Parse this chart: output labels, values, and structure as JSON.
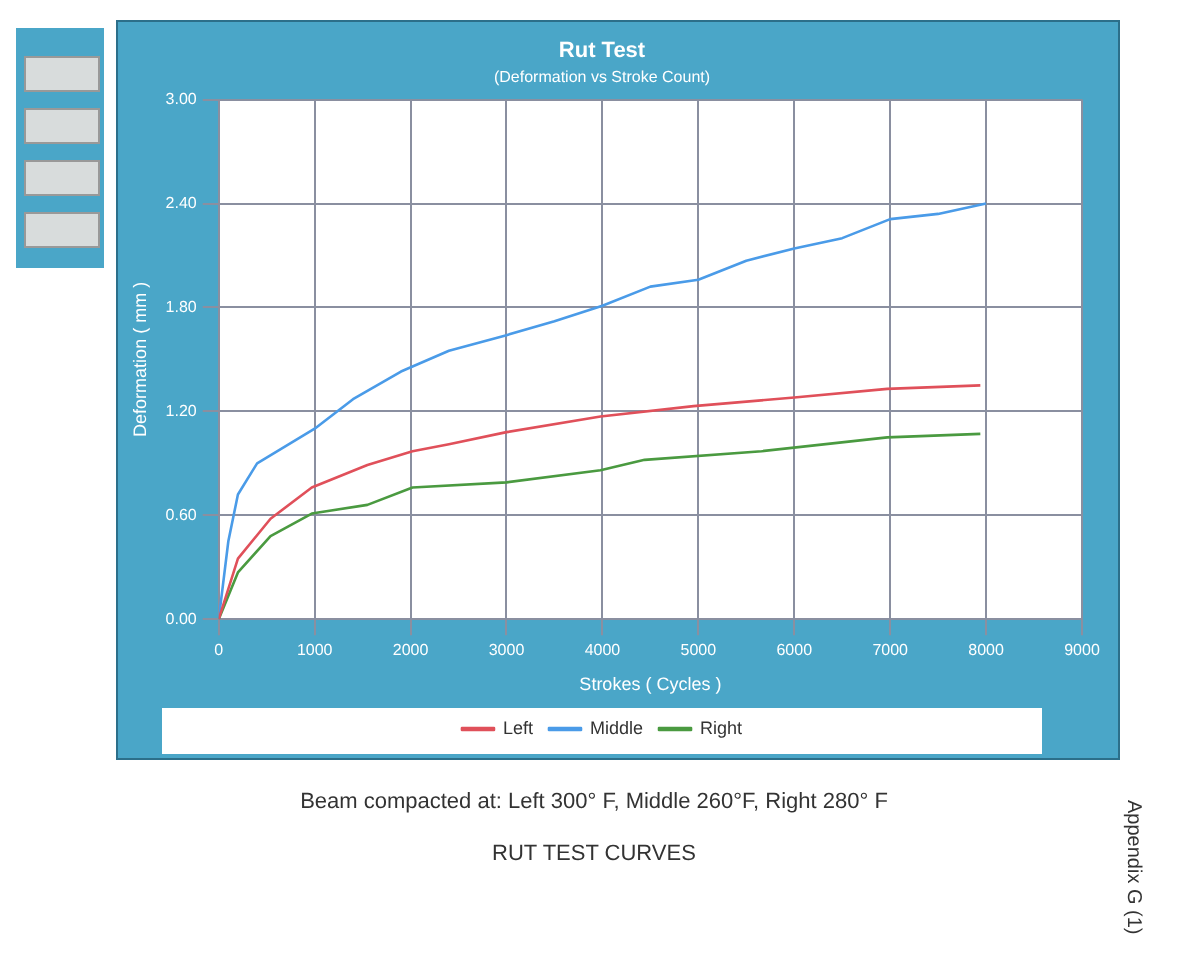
{
  "chart_data": {
    "type": "line",
    "title": "Rut Test",
    "subtitle": "(Deformation vs Stroke Count)",
    "xlabel": "Strokes ( Cycles )",
    "ylabel": "Deformation ( mm )",
    "xlim": [
      0,
      9000
    ],
    "xticks": [
      0,
      1000,
      2000,
      3000,
      4000,
      5000,
      6000,
      7000,
      8000,
      9000
    ],
    "ylim": [
      0,
      3.0
    ],
    "yticks": [
      {
        "value": 0,
        "label": "0.00"
      },
      {
        "value": 0.6,
        "label": "0.60"
      },
      {
        "value": 1.2,
        "label": "1.20"
      },
      {
        "value": 1.8,
        "label": "1.80"
      },
      {
        "value": 2.4,
        "label": "2.40"
      },
      {
        "value": 3.0,
        "label": "3.00"
      }
    ],
    "grid": true,
    "legend": "bottom",
    "marker": "none",
    "line_style": "solid",
    "series": [
      {
        "name": "Left",
        "color": "#e0505a",
        "x": [
          0,
          200,
          540,
          970,
          1550,
          2020,
          2400,
          3000,
          3980,
          4950,
          6000,
          6970,
          7940
        ],
        "values": [
          0,
          0.35,
          0.58,
          0.76,
          0.89,
          0.97,
          1.01,
          1.08,
          1.17,
          1.23,
          1.28,
          1.33,
          1.35
        ]
      },
      {
        "name": "Middle",
        "color": "#4a9be8",
        "x": [
          0,
          100,
          200,
          400,
          1000,
          1400,
          1900,
          2400,
          3000,
          3500,
          4000,
          4500,
          5000,
          5500,
          6000,
          6500,
          7000,
          7500,
          8000
        ],
        "values": [
          0,
          0.45,
          0.72,
          0.9,
          1.1,
          1.27,
          1.43,
          1.55,
          1.64,
          1.72,
          1.81,
          1.92,
          1.96,
          2.07,
          2.14,
          2.2,
          2.31,
          2.34,
          2.4
        ]
      },
      {
        "name": "Right",
        "color": "#4a9a40",
        "x": [
          0,
          200,
          540,
          970,
          1550,
          2020,
          3000,
          3980,
          4440,
          5660,
          6970,
          7940
        ],
        "values": [
          0,
          0.27,
          0.48,
          0.61,
          0.66,
          0.76,
          0.79,
          0.86,
          0.92,
          0.97,
          1.05,
          1.07
        ]
      }
    ],
    "annotations": [
      "Beam compacted at: Left 300° F, Middle 260°F, Right 280° F",
      "RUT TEST CURVES",
      "Appendix G (1)"
    ]
  }
}
